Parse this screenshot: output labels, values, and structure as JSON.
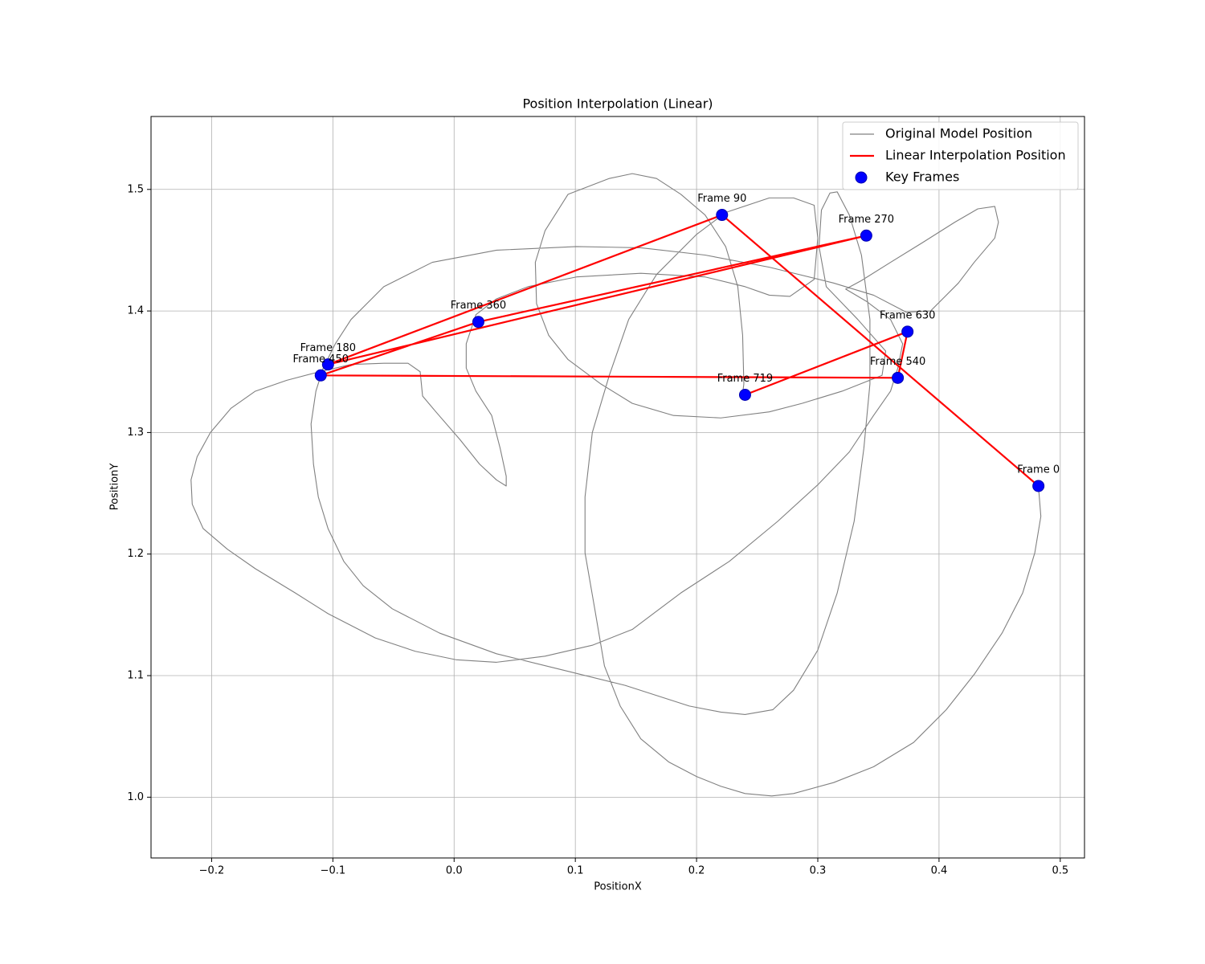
{
  "chart_data": {
    "type": "line",
    "title": "Position Interpolation (Linear)",
    "xlabel": "PositionX",
    "ylabel": "PositionY",
    "xlim": [
      -0.25,
      0.52
    ],
    "ylim": [
      0.95,
      1.56
    ],
    "xticks": [
      {
        "value": -0.2,
        "label": "−0.2"
      },
      {
        "value": -0.1,
        "label": "−0.1"
      },
      {
        "value": 0,
        "label": "0.0"
      },
      0.1,
      0.2,
      0.3,
      0.4,
      0.5
    ],
    "yticks": [
      {
        "value": 1,
        "label": "1.0"
      },
      1.1,
      1.2,
      1.3,
      1.4,
      1.5
    ],
    "grid": true,
    "legend": "upper right",
    "series": [
      {
        "name": "Original Model Position",
        "type": "line",
        "color": "#808080",
        "x": [
          0.482,
          0.484,
          0.479,
          0.469,
          0.452,
          0.429,
          0.406,
          0.379,
          0.346,
          0.313,
          0.28,
          0.262,
          0.24,
          0.22,
          0.2,
          0.177,
          0.154,
          0.137,
          0.124,
          0.116,
          0.108,
          0.108,
          0.114,
          0.128,
          0.144,
          0.167,
          0.2,
          0.224,
          0.26,
          0.28,
          0.297,
          0.3,
          0.297,
          0.277,
          0.26,
          0.24,
          0.207,
          0.154,
          0.101,
          0.061,
          0.035,
          0.018,
          0.01,
          0.01,
          0.018,
          0.031,
          0.038,
          0.043,
          0.043,
          0.035,
          0.021,
          0.005,
          -0.015,
          -0.026,
          -0.028,
          -0.038,
          -0.058,
          -0.085,
          -0.111,
          -0.138,
          -0.164,
          -0.184,
          -0.201,
          -0.212,
          -0.217,
          -0.216,
          -0.207,
          -0.187,
          -0.164,
          -0.131,
          -0.104,
          -0.065,
          -0.032,
          0.002,
          0.035,
          0.075,
          0.114,
          0.147,
          0.187,
          0.227,
          0.267,
          0.3,
          0.326,
          0.346,
          0.36,
          0.366,
          0.37,
          0.36,
          0.34,
          0.323,
          0.336,
          0.36,
          0.386,
          0.413,
          0.432,
          0.446,
          0.449,
          0.446,
          0.429,
          0.416,
          0.403,
          0.393,
          0.373,
          0.346,
          0.313,
          0.26,
          0.207,
          0.154,
          0.101,
          0.035,
          -0.018,
          -0.058,
          -0.085,
          -0.098,
          -0.108,
          -0.114,
          -0.118,
          -0.116,
          -0.112,
          -0.104,
          -0.091,
          -0.075,
          -0.051,
          -0.012,
          0.035,
          0.088,
          0.141,
          0.194,
          0.22,
          0.24,
          0.263,
          0.28,
          0.3,
          0.316,
          0.33,
          0.338,
          0.343,
          0.343,
          0.336,
          0.326,
          0.316,
          0.31,
          0.303,
          0.301,
          0.307,
          0.333,
          0.356,
          0.353,
          0.32,
          0.287,
          0.26,
          0.22,
          0.181,
          0.147,
          0.121,
          0.094,
          0.078,
          0.068,
          0.067,
          0.075,
          0.094,
          0.128,
          0.147,
          0.167,
          0.187,
          0.207,
          0.224,
          0.234,
          0.238,
          0.239,
          0.238
        ],
        "y": [
          1.256,
          1.231,
          1.201,
          1.168,
          1.135,
          1.101,
          1.072,
          1.045,
          1.025,
          1.012,
          1.003,
          1.001,
          1.003,
          1.009,
          1.017,
          1.029,
          1.048,
          1.075,
          1.108,
          1.155,
          1.201,
          1.247,
          1.3,
          1.347,
          1.393,
          1.43,
          1.463,
          1.481,
          1.493,
          1.493,
          1.487,
          1.46,
          1.426,
          1.412,
          1.413,
          1.42,
          1.428,
          1.431,
          1.428,
          1.42,
          1.41,
          1.397,
          1.373,
          1.353,
          1.334,
          1.314,
          1.287,
          1.264,
          1.256,
          1.261,
          1.274,
          1.294,
          1.317,
          1.33,
          1.35,
          1.357,
          1.357,
          1.356,
          1.35,
          1.343,
          1.334,
          1.32,
          1.3,
          1.28,
          1.261,
          1.241,
          1.221,
          1.204,
          1.188,
          1.168,
          1.151,
          1.131,
          1.12,
          1.113,
          1.111,
          1.116,
          1.125,
          1.138,
          1.168,
          1.194,
          1.227,
          1.257,
          1.284,
          1.314,
          1.334,
          1.353,
          1.373,
          1.393,
          1.408,
          1.418,
          1.425,
          1.44,
          1.456,
          1.473,
          1.484,
          1.486,
          1.473,
          1.46,
          1.44,
          1.423,
          1.41,
          1.4,
          1.399,
          1.413,
          1.423,
          1.436,
          1.446,
          1.452,
          1.453,
          1.45,
          1.44,
          1.42,
          1.393,
          1.373,
          1.353,
          1.334,
          1.307,
          1.274,
          1.247,
          1.221,
          1.194,
          1.174,
          1.155,
          1.135,
          1.118,
          1.105,
          1.092,
          1.075,
          1.07,
          1.068,
          1.072,
          1.088,
          1.121,
          1.168,
          1.227,
          1.287,
          1.34,
          1.393,
          1.446,
          1.479,
          1.498,
          1.497,
          1.483,
          1.453,
          1.42,
          1.393,
          1.367,
          1.347,
          1.334,
          1.324,
          1.317,
          1.312,
          1.314,
          1.324,
          1.34,
          1.36,
          1.38,
          1.406,
          1.44,
          1.466,
          1.496,
          1.509,
          1.513,
          1.509,
          1.496,
          1.479,
          1.453,
          1.42,
          1.38,
          1.34,
          1.332
        ]
      },
      {
        "name": "Linear Interpolation Position",
        "type": "line",
        "color": "#ff0000",
        "x": [
          0.482,
          0.221,
          -0.104,
          0.34,
          0.02,
          -0.11,
          0.366,
          0.374,
          0.24
        ],
        "y": [
          1.256,
          1.479,
          1.356,
          1.462,
          1.391,
          1.347,
          1.345,
          1.383,
          1.331
        ]
      },
      {
        "name": "Key Frames",
        "type": "scatter",
        "color": "#0000ff",
        "x": [
          0.482,
          0.221,
          -0.104,
          0.34,
          0.02,
          -0.11,
          0.366,
          0.374,
          0.24
        ],
        "y": [
          1.256,
          1.479,
          1.356,
          1.462,
          1.391,
          1.347,
          1.345,
          1.383,
          1.331
        ],
        "labels": [
          "Frame 0",
          "Frame 90",
          "Frame 180",
          "Frame 270",
          "Frame 360",
          "Frame 450",
          "Frame 540",
          "Frame 630",
          "Frame 719"
        ]
      }
    ]
  }
}
